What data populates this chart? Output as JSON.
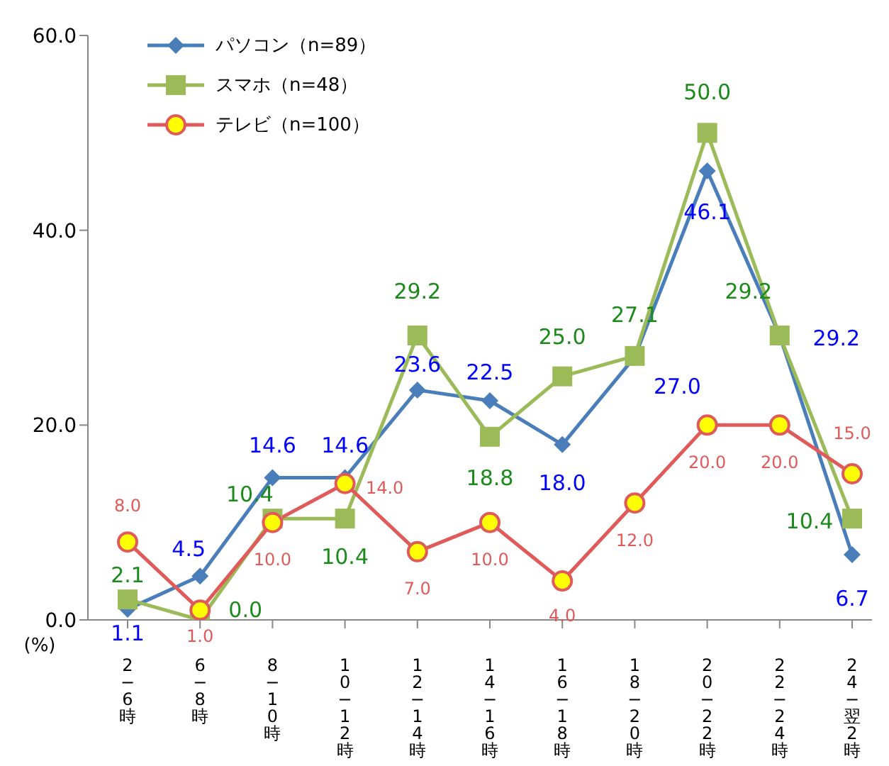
{
  "chart_data": {
    "type": "line",
    "ylabel": "(%)",
    "categories": [
      "2−6時",
      "6−8時",
      "8−10時",
      "10−12時",
      "12−14時",
      "14−16時",
      "16−18時",
      "18−20時",
      "20−22時",
      "22−24時",
      "24−翌2時"
    ],
    "series": [
      {
        "name": "パソコン（n=89）",
        "color": "#4a7ebb",
        "marker": "diamond",
        "values": [
          1.1,
          4.5,
          14.6,
          14.6,
          23.6,
          22.5,
          18.0,
          27.0,
          46.1,
          29.2,
          6.7
        ],
        "value_labels": [
          "1.1",
          "4.5",
          "14.6",
          "14.6",
          "23.6",
          "22.5",
          "18.0",
          "27.0",
          "46.1",
          "29.2",
          "6.7"
        ]
      },
      {
        "name": "スマホ（n=48）",
        "color": "#9bbb59",
        "marker": "square",
        "values": [
          2.1,
          0.0,
          10.4,
          10.4,
          29.2,
          18.8,
          25.0,
          27.1,
          50.0,
          29.2,
          10.4
        ],
        "value_labels": [
          "2.1",
          "0.0",
          "10.4",
          "10.4",
          "29.2",
          "18.8",
          "25.0",
          "27.1",
          "50.0",
          "29.2",
          "10.4"
        ]
      },
      {
        "name": "テレビ（n=100）",
        "color": "#e05a5a",
        "marker": "circle",
        "values": [
          8.0,
          1.0,
          10.0,
          14.0,
          7.0,
          10.0,
          4.0,
          12.0,
          20.0,
          20.0,
          15.0
        ],
        "value_labels": [
          "8.0",
          "1.0",
          "10.0",
          "14.0",
          "7.0",
          "10.0",
          "4.0",
          "12.0",
          "20.0",
          "20.0",
          "15.0"
        ]
      }
    ],
    "ylim": [
      0,
      60
    ],
    "yticks": [
      {
        "value": 0,
        "label": "0.0"
      },
      {
        "value": 20,
        "label": "20.0"
      },
      {
        "value": 40,
        "label": "40.0"
      },
      {
        "value": 60,
        "label": "60.0"
      }
    ],
    "grid": false,
    "legend": "top left"
  }
}
